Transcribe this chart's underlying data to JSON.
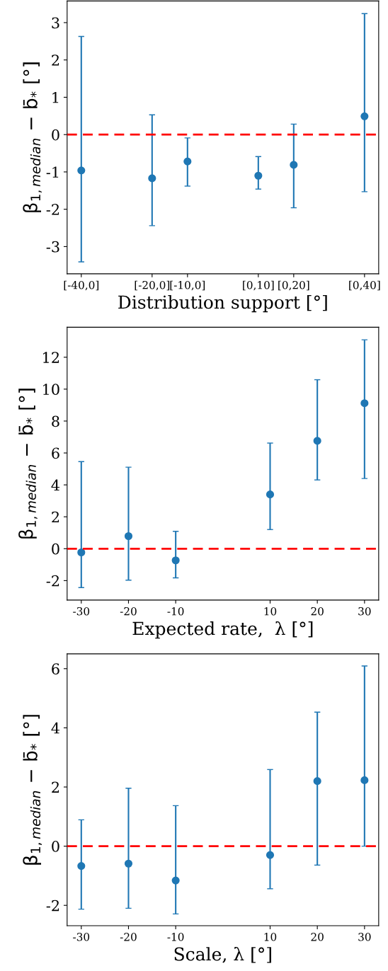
{
  "chart_data": [
    {
      "type": "scatter",
      "xlabel": "Distribution support [°]",
      "ylabel": "β$_{1,median}$ − b̄$_{*}$ [°]",
      "marker": "circle",
      "grid": false,
      "categories": [
        "[-40,0]",
        null,
        "[-20,0]",
        "[-10,0]",
        null,
        "[0,10]",
        "[0,20]",
        null,
        "[0,40]"
      ],
      "series": [
        {
          "color": "#1f77b4",
          "values": [
            -0.96,
            null,
            -1.17,
            -0.72,
            null,
            -1.1,
            -0.81,
            null,
            0.49
          ],
          "errors": [
            [
              -3.41,
              2.63
            ],
            null,
            [
              -2.44,
              0.53
            ],
            [
              -1.38,
              -0.09
            ],
            null,
            [
              -1.46,
              -0.59
            ],
            [
              -1.96,
              0.28
            ],
            null,
            [
              -1.53,
              3.24
            ]
          ]
        }
      ],
      "ylim": [
        -3.73,
        3.58
      ],
      "yticks": [
        -3,
        -2,
        -1,
        0,
        1,
        2,
        3
      ],
      "ref_lines": [
        {
          "axis": "y",
          "value": 0,
          "color": "#ff0000",
          "line_style": "dashed"
        }
      ]
    },
    {
      "type": "scatter",
      "xlabel": "Expected rate,  λ [°]",
      "ylabel": "β$_{1,median}$ − b̄$_{*}$ [°]",
      "marker": "circle",
      "grid": false,
      "x": [
        -30,
        -20,
        -10,
        10,
        20,
        30
      ],
      "series": [
        {
          "color": "#1f77b4",
          "values": [
            -0.23,
            0.79,
            -0.73,
            3.4,
            6.76,
            9.12
          ],
          "errors": [
            [
              -2.44,
              5.46
            ],
            [
              -1.97,
              5.11
            ],
            [
              -1.83,
              1.09
            ],
            [
              1.2,
              6.62
            ],
            [
              4.31,
              10.59
            ],
            [
              4.4,
              13.09
            ]
          ]
        }
      ],
      "xlim": [
        -33,
        33
      ],
      "xticks": [
        -30,
        -20,
        -10,
        10,
        20,
        30
      ],
      "ylim": [
        -3.22,
        13.88
      ],
      "yticks": [
        -2,
        0,
        2,
        4,
        6,
        8,
        10,
        12
      ],
      "ref_lines": [
        {
          "axis": "y",
          "value": 0,
          "color": "#ff0000",
          "line_style": "dashed"
        }
      ]
    },
    {
      "type": "scatter",
      "xlabel": "Scale, λ [°]",
      "ylabel": "β$_{1,median}$ − b̄$_{*}$ [°]",
      "marker": "circle",
      "grid": false,
      "x": [
        -30,
        -20,
        -10,
        10,
        20,
        30
      ],
      "series": [
        {
          "color": "#1f77b4",
          "values": [
            -0.67,
            -0.59,
            -1.16,
            -0.3,
            2.2,
            2.23
          ],
          "errors": [
            [
              -2.13,
              0.89
            ],
            [
              -2.1,
              1.96
            ],
            [
              -2.29,
              1.37
            ],
            [
              -1.44,
              2.59
            ],
            [
              -0.64,
              4.53
            ],
            [
              0.0,
              6.09
            ]
          ]
        }
      ],
      "xlim": [
        -33,
        33
      ],
      "xticks": [
        -30,
        -20,
        -10,
        10,
        20,
        30
      ],
      "ylim": [
        -2.69,
        6.5
      ],
      "yticks": [
        -2,
        0,
        2,
        4,
        6
      ],
      "ref_lines": [
        {
          "axis": "y",
          "value": 0,
          "color": "#ff0000",
          "line_style": "dashed"
        }
      ]
    }
  ]
}
